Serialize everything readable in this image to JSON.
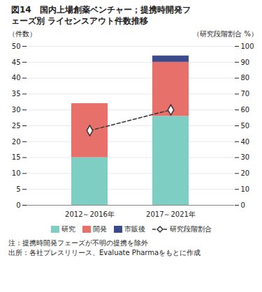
{
  "chart_data": {
    "type": "bar",
    "title": "図14　国内上場創薬ベンチャー；提携時開発フ\nェーズ別 ライセンスアウト件数推移",
    "categories": [
      "2012～2016年",
      "2017～2021年"
    ],
    "stacked": true,
    "series": [
      {
        "name": "研究",
        "color": "#7ecec4",
        "values": [
          15,
          28
        ]
      },
      {
        "name": "開発",
        "color": "#e8706a",
        "values": [
          17,
          17
        ]
      },
      {
        "name": "市販後",
        "color": "#3a4a8a",
        "values": [
          0,
          2
        ]
      },
      {
        "name": "研究段階割合",
        "type": "line",
        "axis": "y2",
        "color": "#333333",
        "line_style": "dashed",
        "marker": "diamond",
        "values": [
          47,
          60
        ]
      }
    ],
    "ylabel": "（件数）",
    "y2label": "（研究段階割合 %）",
    "ylim": [
      0,
      50
    ],
    "yticks": [
      0,
      5,
      10,
      15,
      20,
      25,
      30,
      35,
      40,
      45,
      50
    ],
    "y2lim": [
      0,
      100
    ],
    "y2ticks": [
      0,
      10,
      20,
      30,
      40,
      50,
      60,
      70,
      80,
      90,
      100
    ],
    "grid": true,
    "legend": "bottom",
    "annotations": [
      "注：提携時開発フェーズが不明の提携を除外",
      "出所：各社プレスリリース、Evaluate Pharmaをもとに作成"
    ]
  }
}
